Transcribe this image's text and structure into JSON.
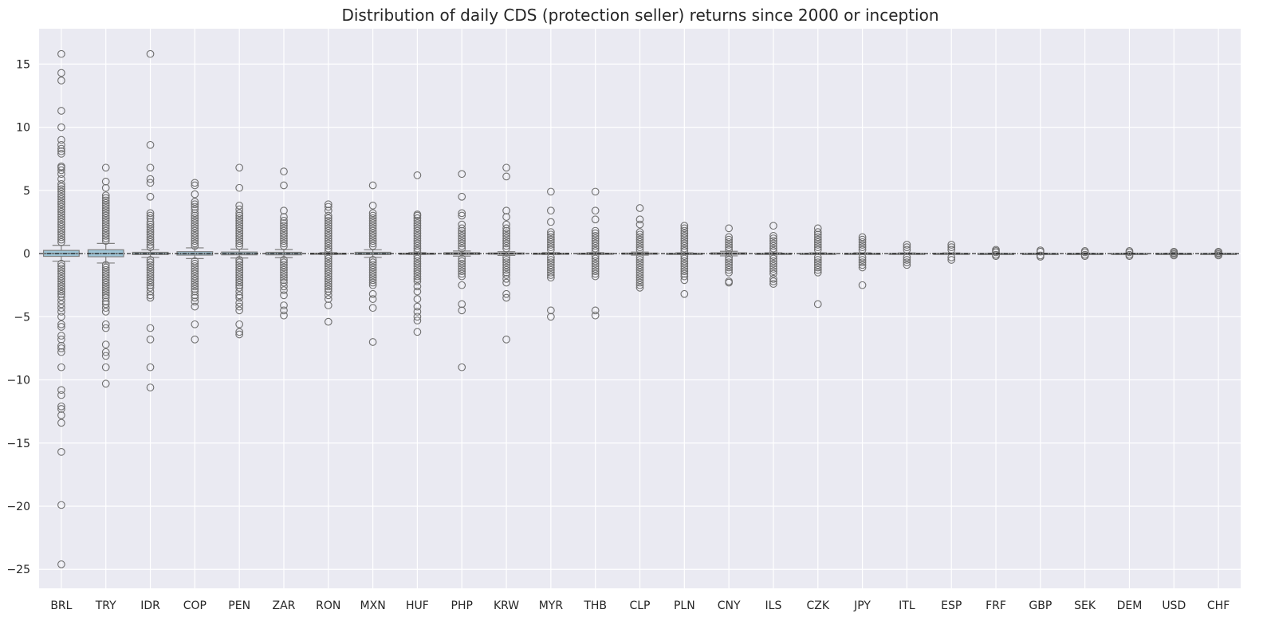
{
  "chart_data": {
    "type": "box",
    "title": "Distribution of daily CDS (protection seller) returns since 2000 or inception",
    "xlabel": "",
    "ylabel": "",
    "ylim": [
      -26.5,
      17.8
    ],
    "yticks": [
      15,
      10,
      5,
      0,
      -5,
      -10,
      -15,
      -20,
      -25
    ],
    "ytick_labels": [
      "15",
      "10",
      "5",
      "0",
      "−5",
      "−10",
      "−15",
      "−20",
      "−25"
    ],
    "reference_line": 0,
    "grid": true,
    "colors": {
      "plot_bg": "#eaeaf2",
      "grid": "#ffffff",
      "box_fill": "#9ec5d8",
      "box_edge": "#7f7f7f",
      "outlier": "#6e6e6e",
      "refline": "#000000"
    },
    "categories": [
      "BRL",
      "TRY",
      "IDR",
      "COP",
      "PEN",
      "ZAR",
      "RON",
      "MXN",
      "HUF",
      "PHP",
      "KRW",
      "MYR",
      "THB",
      "CLP",
      "PLN",
      "CNY",
      "ILS",
      "CZK",
      "JPY",
      "ITL",
      "ESP",
      "FRF",
      "GBP",
      "SEK",
      "DEM",
      "USD",
      "CHF"
    ],
    "boxes": [
      {
        "name": "BRL",
        "q1": -0.22,
        "median": 0,
        "q3": 0.25,
        "whislo": -0.6,
        "whishi": 0.65,
        "outliers": [
          15.8,
          14.3,
          13.7,
          11.3,
          10,
          9,
          8.6,
          8.3,
          8.1,
          7.9,
          6.9,
          6.8,
          6.6,
          6.3,
          5.9,
          5.5,
          5.3,
          5.1,
          4.9,
          4.7,
          4.5,
          4.3,
          4.1,
          3.9,
          3.7,
          3.5,
          3.3,
          3.1,
          2.9,
          2.7,
          2.5,
          2.3,
          2.1,
          1.9,
          1.7,
          1.5,
          1.3,
          1.1,
          0.9,
          -0.8,
          -1,
          -1.2,
          -1.4,
          -1.6,
          -1.8,
          -2,
          -2.2,
          -2.4,
          -2.6,
          -2.8,
          -3,
          -3.2,
          -3.4,
          -3.7,
          -4,
          -4.3,
          -4.6,
          -5,
          -5.6,
          -5.8,
          -6.5,
          -6.8,
          -7.3,
          -7.5,
          -7.8,
          -9,
          -10.8,
          -11.2,
          -12.1,
          -12.3,
          -12.8,
          -13.4,
          -15.7,
          -19.9,
          -24.6
        ]
      },
      {
        "name": "TRY",
        "q1": -0.25,
        "median": 0,
        "q3": 0.3,
        "whislo": -0.75,
        "whishi": 0.8,
        "outliers": [
          6.8,
          5.7,
          5.2,
          4.6,
          4.4,
          4.2,
          4,
          3.8,
          3.6,
          3.4,
          3.2,
          3,
          2.8,
          2.6,
          2.4,
          2.2,
          2,
          1.8,
          1.6,
          1.4,
          1.2,
          1,
          -0.9,
          -1.1,
          -1.3,
          -1.5,
          -1.7,
          -1.9,
          -2.1,
          -2.3,
          -2.5,
          -2.7,
          -2.9,
          -3.1,
          -3.3,
          -3.5,
          -3.8,
          -4,
          -4.3,
          -4.6,
          -5.6,
          -5.9,
          -7.2,
          -7.8,
          -8.1,
          -9,
          -10.3
        ]
      },
      {
        "name": "IDR",
        "q1": -0.08,
        "median": 0,
        "q3": 0.1,
        "whislo": -0.3,
        "whishi": 0.3,
        "outliers": [
          15.8,
          8.6,
          6.8,
          5.9,
          5.6,
          4.5,
          3.2,
          3,
          2.8,
          2.5,
          2.3,
          2.1,
          1.9,
          1.7,
          1.5,
          1.3,
          1.1,
          0.9,
          0.7,
          0.5,
          -0.5,
          -0.7,
          -0.9,
          -1.1,
          -1.3,
          -1.5,
          -1.7,
          -1.9,
          -2.1,
          -2.3,
          -2.5,
          -2.7,
          -3,
          -3.3,
          -3.5,
          -5.9,
          -6.8,
          -9,
          -10.6
        ]
      },
      {
        "name": "COP",
        "q1": -0.12,
        "median": 0,
        "q3": 0.15,
        "whislo": -0.4,
        "whishi": 0.45,
        "outliers": [
          5.6,
          5.4,
          4.7,
          4.1,
          3.9,
          3.7,
          3.5,
          3.2,
          3,
          2.8,
          2.6,
          2.4,
          2.2,
          2,
          1.8,
          1.6,
          1.4,
          1.2,
          1,
          0.8,
          0.6,
          -0.6,
          -0.8,
          -1,
          -1.2,
          -1.4,
          -1.6,
          -1.8,
          -2,
          -2.2,
          -2.4,
          -2.6,
          -2.8,
          -3,
          -3.3,
          -3.5,
          -3.8,
          -4.2,
          -5.6,
          -6.8
        ]
      },
      {
        "name": "PEN",
        "q1": -0.1,
        "median": 0,
        "q3": 0.12,
        "whislo": -0.35,
        "whishi": 0.35,
        "outliers": [
          6.8,
          5.2,
          3.8,
          3.5,
          3.2,
          3,
          2.8,
          2.6,
          2.4,
          2.2,
          2,
          1.8,
          1.6,
          1.4,
          1.2,
          1,
          0.8,
          0.6,
          -0.5,
          -0.7,
          -0.9,
          -1.1,
          -1.3,
          -1.5,
          -1.7,
          -1.9,
          -2.1,
          -2.3,
          -2.5,
          -2.7,
          -3,
          -3.3,
          -3.5,
          -3.9,
          -4.2,
          -4.5,
          -5.6,
          -6.2,
          -6.4
        ]
      },
      {
        "name": "ZAR",
        "q1": -0.1,
        "median": 0,
        "q3": 0.1,
        "whislo": -0.32,
        "whishi": 0.32,
        "outliers": [
          6.5,
          5.4,
          3.4,
          2.9,
          2.6,
          2.4,
          2.2,
          2,
          1.8,
          1.6,
          1.4,
          1.2,
          1,
          0.8,
          0.6,
          -0.5,
          -0.7,
          -0.9,
          -1.1,
          -1.3,
          -1.5,
          -1.7,
          -1.9,
          -2.1,
          -2.3,
          -2.6,
          -2.9,
          -3.3,
          -4.1,
          -4.5,
          -4.9
        ]
      },
      {
        "name": "RON",
        "q1": -0.03,
        "median": 0,
        "q3": 0.03,
        "whislo": -0.08,
        "whishi": 0.08,
        "outliers": [
          3.9,
          3.7,
          3.4,
          3,
          2.8,
          2.6,
          2.4,
          2.2,
          2,
          1.8,
          1.6,
          1.4,
          1.2,
          1,
          0.8,
          0.6,
          0.4,
          0.2,
          -0.2,
          -0.4,
          -0.6,
          -0.8,
          -1,
          -1.2,
          -1.4,
          -1.6,
          -1.8,
          -2,
          -2.2,
          -2.4,
          -2.6,
          -2.8,
          -3,
          -3.3,
          -3.6,
          -4.1,
          -5.4
        ]
      },
      {
        "name": "MXN",
        "q1": -0.08,
        "median": 0,
        "q3": 0.1,
        "whislo": -0.3,
        "whishi": 0.3,
        "outliers": [
          5.4,
          3.8,
          3.2,
          3,
          2.8,
          2.6,
          2.4,
          2.2,
          2,
          1.8,
          1.6,
          1.4,
          1.2,
          1,
          0.8,
          0.6,
          -0.5,
          -0.7,
          -0.9,
          -1.1,
          -1.3,
          -1.5,
          -1.7,
          -1.9,
          -2.1,
          -2.3,
          -2.5,
          -3.2,
          -3.6,
          -4.3,
          -7
        ]
      },
      {
        "name": "HUF",
        "q1": -0.03,
        "median": 0,
        "q3": 0.03,
        "whislo": -0.08,
        "whishi": 0.08,
        "outliers": [
          6.2,
          3.1,
          3,
          2.8,
          2.6,
          2.4,
          2.2,
          2,
          1.8,
          1.6,
          1.4,
          1.2,
          1,
          0.8,
          0.6,
          0.4,
          0.2,
          -0.2,
          -0.4,
          -0.6,
          -0.8,
          -1,
          -1.2,
          -1.4,
          -1.6,
          -1.8,
          -2,
          -2.2,
          -2.6,
          -3,
          -3.6,
          -4.2,
          -4.6,
          -5,
          -5.3,
          -6.2
        ]
      },
      {
        "name": "PHP",
        "q1": -0.07,
        "median": 0,
        "q3": 0.07,
        "whislo": -0.2,
        "whishi": 0.2,
        "outliers": [
          6.3,
          4.5,
          3.2,
          3,
          2.3,
          2,
          1.8,
          1.6,
          1.4,
          1.2,
          1,
          0.8,
          0.6,
          0.4,
          -0.4,
          -0.6,
          -0.8,
          -1,
          -1.2,
          -1.4,
          -1.6,
          -1.8,
          -2.5,
          -4,
          -4.5,
          -9
        ]
      },
      {
        "name": "KRW",
        "q1": -0.05,
        "median": 0,
        "q3": 0.05,
        "whislo": -0.15,
        "whishi": 0.15,
        "outliers": [
          6.8,
          6.1,
          3.4,
          2.9,
          2.3,
          2,
          1.8,
          1.6,
          1.4,
          1.2,
          1,
          0.8,
          0.6,
          0.4,
          -0.3,
          -0.5,
          -0.7,
          -0.9,
          -1.1,
          -1.3,
          -1.5,
          -1.7,
          -2,
          -2.3,
          -3.2,
          -3.5,
          -6.8
        ]
      },
      {
        "name": "MYR",
        "q1": -0.03,
        "median": 0,
        "q3": 0.03,
        "whislo": -0.08,
        "whishi": 0.08,
        "outliers": [
          4.9,
          3.4,
          2.5,
          1.7,
          1.5,
          1.3,
          1.1,
          0.9,
          0.7,
          0.5,
          0.3,
          -0.3,
          -0.5,
          -0.7,
          -0.9,
          -1.1,
          -1.3,
          -1.5,
          -1.7,
          -1.9,
          -4.5,
          -5
        ]
      },
      {
        "name": "THB",
        "q1": -0.03,
        "median": 0,
        "q3": 0.03,
        "whislo": -0.08,
        "whishi": 0.08,
        "outliers": [
          4.9,
          3.4,
          2.7,
          1.8,
          1.6,
          1.4,
          1.2,
          1,
          0.8,
          0.6,
          0.4,
          0.2,
          -0.2,
          -0.4,
          -0.6,
          -0.8,
          -1,
          -1.2,
          -1.4,
          -1.6,
          -1.8,
          -4.5,
          -4.9
        ]
      },
      {
        "name": "CLP",
        "q1": -0.04,
        "median": 0,
        "q3": 0.04,
        "whislo": -0.12,
        "whishi": 0.12,
        "outliers": [
          3.6,
          2.7,
          2.3,
          1.7,
          1.5,
          1.3,
          1.1,
          0.9,
          0.7,
          0.5,
          0.3,
          -0.3,
          -0.5,
          -0.7,
          -0.9,
          -1.1,
          -1.3,
          -1.5,
          -1.7,
          -1.9,
          -2.1,
          -2.3,
          -2.5,
          -2.7
        ]
      },
      {
        "name": "PLN",
        "q1": -0.02,
        "median": 0,
        "q3": 0.02,
        "whislo": -0.06,
        "whishi": 0.06,
        "outliers": [
          2.2,
          2,
          1.8,
          1.6,
          1.4,
          1.2,
          1,
          0.8,
          0.6,
          0.4,
          0.2,
          -0.2,
          -0.4,
          -0.6,
          -0.8,
          -1,
          -1.2,
          -1.4,
          -1.6,
          -1.8,
          -2.1,
          -3.2
        ]
      },
      {
        "name": "CNY",
        "q1": -0.06,
        "median": 0,
        "q3": 0.06,
        "whislo": -0.18,
        "whishi": 0.18,
        "outliers": [
          2,
          1.3,
          1.1,
          0.9,
          0.7,
          0.5,
          0.3,
          -0.3,
          -0.5,
          -0.7,
          -0.9,
          -1.1,
          -1.3,
          -1.5,
          -2.2,
          -2.3
        ]
      },
      {
        "name": "ILS",
        "q1": -0.02,
        "median": 0,
        "q3": 0.02,
        "whislo": -0.06,
        "whishi": 0.06,
        "outliers": [
          2.2,
          1.4,
          1.2,
          1,
          0.8,
          0.6,
          0.4,
          0.2,
          -0.2,
          -0.4,
          -0.6,
          -0.8,
          -1,
          -1.2,
          -1.4,
          -1.6,
          -2,
          -2.2,
          -2.4
        ]
      },
      {
        "name": "CZK",
        "q1": -0.02,
        "median": 0,
        "q3": 0.02,
        "whislo": -0.06,
        "whishi": 0.06,
        "outliers": [
          2,
          1.7,
          1.5,
          1.3,
          1.1,
          0.9,
          0.7,
          0.5,
          0.3,
          -0.3,
          -0.5,
          -0.7,
          -0.9,
          -1.1,
          -1.3,
          -1.5,
          -4
        ]
      },
      {
        "name": "JPY",
        "q1": -0.02,
        "median": 0,
        "q3": 0.02,
        "whislo": -0.06,
        "whishi": 0.06,
        "outliers": [
          1.3,
          1.1,
          0.9,
          0.7,
          0.5,
          0.3,
          -0.3,
          -0.5,
          -0.7,
          -0.9,
          -1.1,
          -2.5
        ]
      },
      {
        "name": "ITL",
        "q1": -0.02,
        "median": 0,
        "q3": 0.02,
        "whislo": -0.05,
        "whishi": 0.05,
        "outliers": [
          0.7,
          0.5,
          0.3,
          -0.3,
          -0.5,
          -0.7,
          -0.9
        ]
      },
      {
        "name": "ESP",
        "q1": -0.02,
        "median": 0,
        "q3": 0.02,
        "whislo": -0.05,
        "whishi": 0.05,
        "outliers": [
          0.7,
          0.5,
          0.3,
          -0.3,
          -0.5
        ]
      },
      {
        "name": "FRF",
        "q1": -0.01,
        "median": 0,
        "q3": 0.01,
        "whislo": -0.03,
        "whishi": 0.03,
        "outliers": [
          0.3,
          0.2,
          0.1,
          -0.1,
          -0.2
        ]
      },
      {
        "name": "GBP",
        "q1": -0.01,
        "median": 0,
        "q3": 0.01,
        "whislo": -0.03,
        "whishi": 0.03,
        "outliers": [
          0.25,
          0.15,
          -0.15,
          -0.25
        ]
      },
      {
        "name": "SEK",
        "q1": -0.01,
        "median": 0,
        "q3": 0.01,
        "whislo": -0.03,
        "whishi": 0.03,
        "outliers": [
          0.2,
          0.1,
          -0.1,
          -0.2
        ]
      },
      {
        "name": "DEM",
        "q1": -0.01,
        "median": 0,
        "q3": 0.01,
        "whislo": -0.03,
        "whishi": 0.03,
        "outliers": [
          0.2,
          0.1,
          -0.1,
          -0.2
        ]
      },
      {
        "name": "USD",
        "q1": -0.01,
        "median": 0,
        "q3": 0.01,
        "whislo": -0.03,
        "whishi": 0.03,
        "outliers": [
          0.15,
          0.05,
          -0.05,
          -0.15
        ]
      },
      {
        "name": "CHF",
        "q1": -0.01,
        "median": 0,
        "q3": 0.01,
        "whislo": -0.03,
        "whishi": 0.03,
        "outliers": [
          0.15,
          0.05,
          -0.05,
          -0.15
        ]
      }
    ]
  }
}
